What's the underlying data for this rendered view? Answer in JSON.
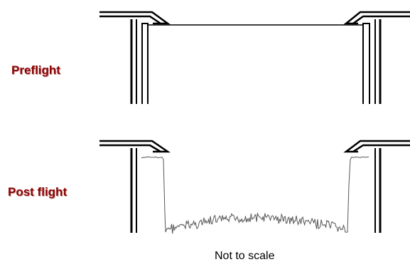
{
  "labels": {
    "preflight": "Preflight",
    "postflight": "Post flight",
    "caption": "Not to scale"
  },
  "colors": {
    "label": "#8b0000",
    "structure": "#000000",
    "trace": "#555555"
  }
}
